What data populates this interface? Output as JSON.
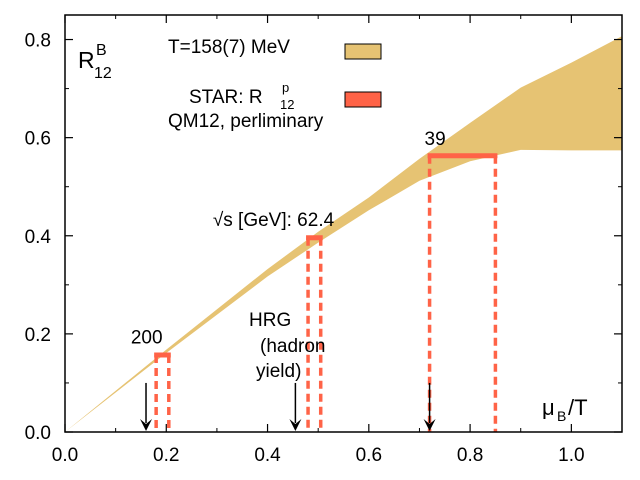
{
  "chart_data": {
    "type": "area",
    "xlabel_main": "μ",
    "xlabel_sub": "B",
    "xlabel_tail": "/T",
    "ylabel_main": "R",
    "ylabel_sup": "B",
    "ylabel_sub": "12",
    "xlim": [
      0.0,
      1.1
    ],
    "ylim": [
      0.0,
      0.85
    ],
    "xticks": [
      0.0,
      0.2,
      0.4,
      0.6,
      0.8,
      1.0
    ],
    "xtick_labels": [
      "0.0",
      "0.2",
      "0.4",
      "0.6",
      "0.8",
      "1.0"
    ],
    "yticks": [
      0.0,
      0.2,
      0.4,
      0.6,
      0.8
    ],
    "ytick_labels": [
      "0.0",
      "0.2",
      "0.4",
      "0.6",
      "0.8"
    ],
    "legend": [
      {
        "label": "T=158(7) MeV",
        "color": "#e6c373"
      },
      {
        "label_main": "STAR: R",
        "label_sup": "p",
        "label_sub": "12",
        "color": "#ff6347"
      }
    ],
    "legend_note": "QM12, perliminary",
    "band": {
      "name": "T=158(7) MeV",
      "color": "#e6c373",
      "x": [
        0.0,
        0.2,
        0.4,
        0.5,
        0.6,
        0.7,
        0.8,
        0.9,
        1.0,
        1.1
      ],
      "upper": [
        0.0,
        0.168,
        0.332,
        0.408,
        0.478,
        0.557,
        0.63,
        0.702,
        0.753,
        0.807
      ],
      "lower": [
        0.0,
        0.161,
        0.317,
        0.386,
        0.452,
        0.512,
        0.552,
        0.575,
        0.574,
        0.574
      ]
    },
    "star_points": [
      {
        "label": "200",
        "y": 0.157,
        "xmin": 0.18,
        "xmax": 0.205,
        "label_x": 0.13,
        "label_y": 0.18
      },
      {
        "label": "62.4",
        "y": 0.396,
        "xmin": 0.48,
        "xmax": 0.505,
        "label_x": 0.5,
        "label_y": 0.42,
        "prefix": "√s [GeV]: "
      },
      {
        "label": "39",
        "y": 0.563,
        "xmin": 0.72,
        "xmax": 0.85,
        "label_x": 0.71,
        "label_y": 0.585
      }
    ],
    "star_color": "#ff6347",
    "hrg_label_lines": [
      "HRG",
      "(hadron",
      "yield)"
    ],
    "arrows": [
      {
        "x": 0.16,
        "y_top": 0.1
      },
      {
        "x": 0.455,
        "y_top": 0.1
      },
      {
        "x": 0.72,
        "y_top": 0.1
      }
    ]
  }
}
